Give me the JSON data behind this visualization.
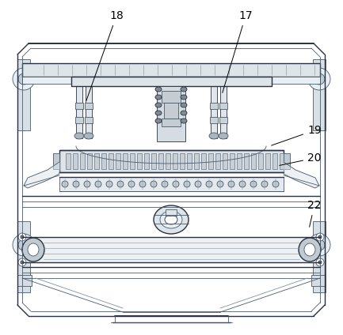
{
  "bg_color": "#ffffff",
  "lc": "#4a5a6a",
  "lcd": "#2a3040",
  "lcl": "#8090a0",
  "figsize": [
    4.33,
    4.24
  ],
  "dpi": 100
}
